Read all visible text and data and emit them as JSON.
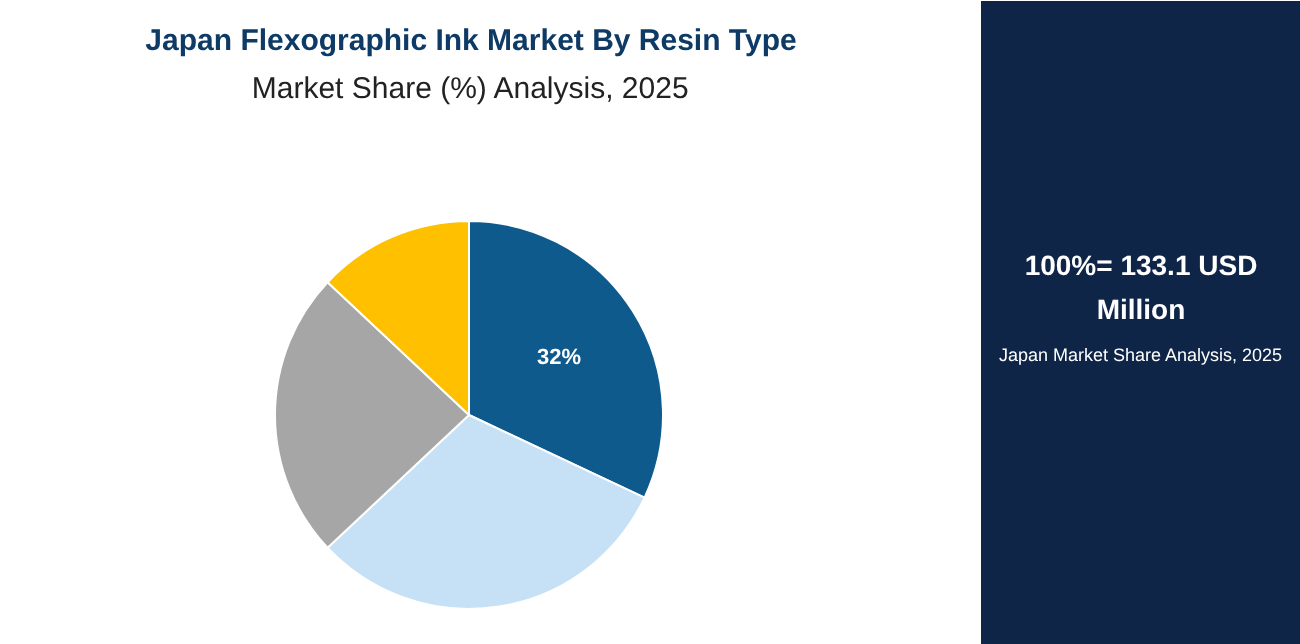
{
  "chart_data": {
    "type": "pie",
    "title": "Japan Flexographic Ink Market By Resin Type",
    "subtitle": "Market Share (%) Analysis, 2025",
    "categories": [
      null,
      null,
      null,
      null
    ],
    "values": [
      32,
      31,
      24,
      13
    ],
    "colors": [
      "#0f5a8c",
      "#c6e1f5",
      "#a6a6a6",
      "#ffc000"
    ],
    "value_labels": [
      "32%",
      null,
      null,
      null
    ],
    "annotations": [
      "100%= 133.1 USD\nMillion",
      "Japan Market Share Analysis, 2025"
    ]
  }
}
